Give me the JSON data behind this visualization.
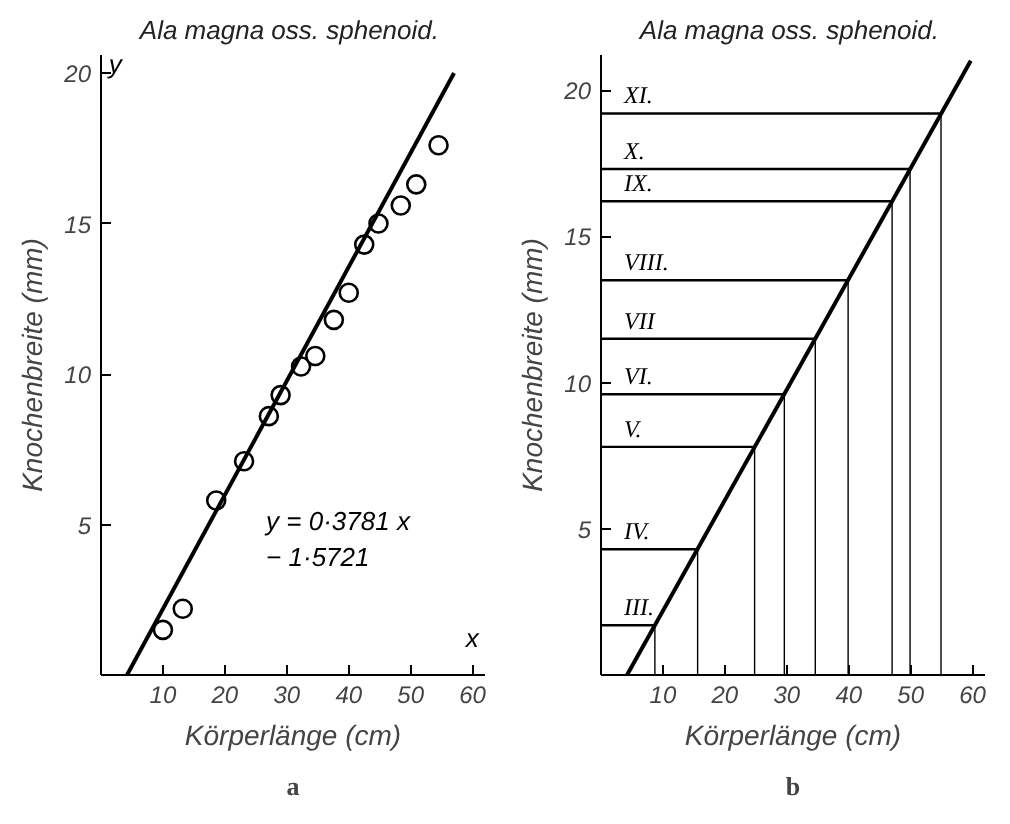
{
  "chart_data": [
    {
      "type": "scatter",
      "title": "Ala  magna oss. sphenoid.",
      "xlabel": "Körperlänge (cm)",
      "ylabel": "Knochenbreite (mm)",
      "grid": false,
      "xlim": [
        0,
        62
      ],
      "ylim": [
        0,
        20.6
      ],
      "xticks": [
        10,
        20,
        30,
        40,
        50,
        60
      ],
      "yticks": [
        5,
        10,
        15,
        20
      ],
      "series": [
        {
          "color": "#000000",
          "marker": "circle",
          "x": [
            10.0,
            13.2,
            18.6,
            23.1,
            27.1,
            29.0,
            32.3,
            34.6,
            37.6,
            40.0,
            42.5,
            44.8,
            48.4,
            50.9,
            54.5
          ],
          "values": [
            1.5,
            2.2,
            5.8,
            7.1,
            8.6,
            9.3,
            10.25,
            10.6,
            11.8,
            12.7,
            14.3,
            15.0,
            15.6,
            16.3,
            17.6
          ]
        },
        {
          "type": "line",
          "color": "#000000",
          "x": [
            4.2,
            57
          ],
          "values": [
            0,
            20
          ]
        }
      ],
      "annotations": [
        "y",
        "x",
        "y = 0·3781 x\n     − 1·5721",
        "a"
      ]
    },
    {
      "type": "line",
      "title": "Ala  magna oss. sphenoid.",
      "xlabel": "Körperlänge (cm)",
      "ylabel": "Knochenbreite (mm)",
      "grid": false,
      "xlim": [
        0,
        62
      ],
      "ylim": [
        0,
        21.2
      ],
      "xticks": [
        10,
        20,
        30,
        40,
        50,
        60
      ],
      "yticks": [
        5,
        10,
        15,
        20
      ],
      "series": [
        {
          "color": "#000000",
          "x": [
            4.2,
            59.7
          ],
          "values": [
            0,
            21
          ]
        }
      ],
      "ref_lines": [
        {
          "axis": "y",
          "value": 1.7,
          "label": "III."
        },
        {
          "axis": "y",
          "value": 4.3,
          "label": "IV."
        },
        {
          "axis": "y",
          "value": 7.8,
          "label": "V."
        },
        {
          "axis": "y",
          "value": 9.6,
          "label": "VI."
        },
        {
          "axis": "y",
          "value": 11.5,
          "label": "VII"
        },
        {
          "axis": "y",
          "value": 13.5,
          "label": "VIII."
        },
        {
          "axis": "y",
          "value": 16.2,
          "label": "IX."
        },
        {
          "axis": "y",
          "value": 17.3,
          "label": "X."
        },
        {
          "axis": "y",
          "value": 19.2,
          "label": "XI."
        },
        {
          "axis": "x",
          "value": 8.7
        },
        {
          "axis": "x",
          "value": 15.6
        },
        {
          "axis": "x",
          "value": 24.8
        },
        {
          "axis": "x",
          "value": 29.6
        },
        {
          "axis": "x",
          "value": 34.6
        },
        {
          "axis": "x",
          "value": 39.9
        },
        {
          "axis": "x",
          "value": 47.0
        },
        {
          "axis": "x",
          "value": 49.9
        },
        {
          "axis": "x",
          "value": 54.9
        }
      ],
      "annotations": [
        "b"
      ]
    }
  ]
}
